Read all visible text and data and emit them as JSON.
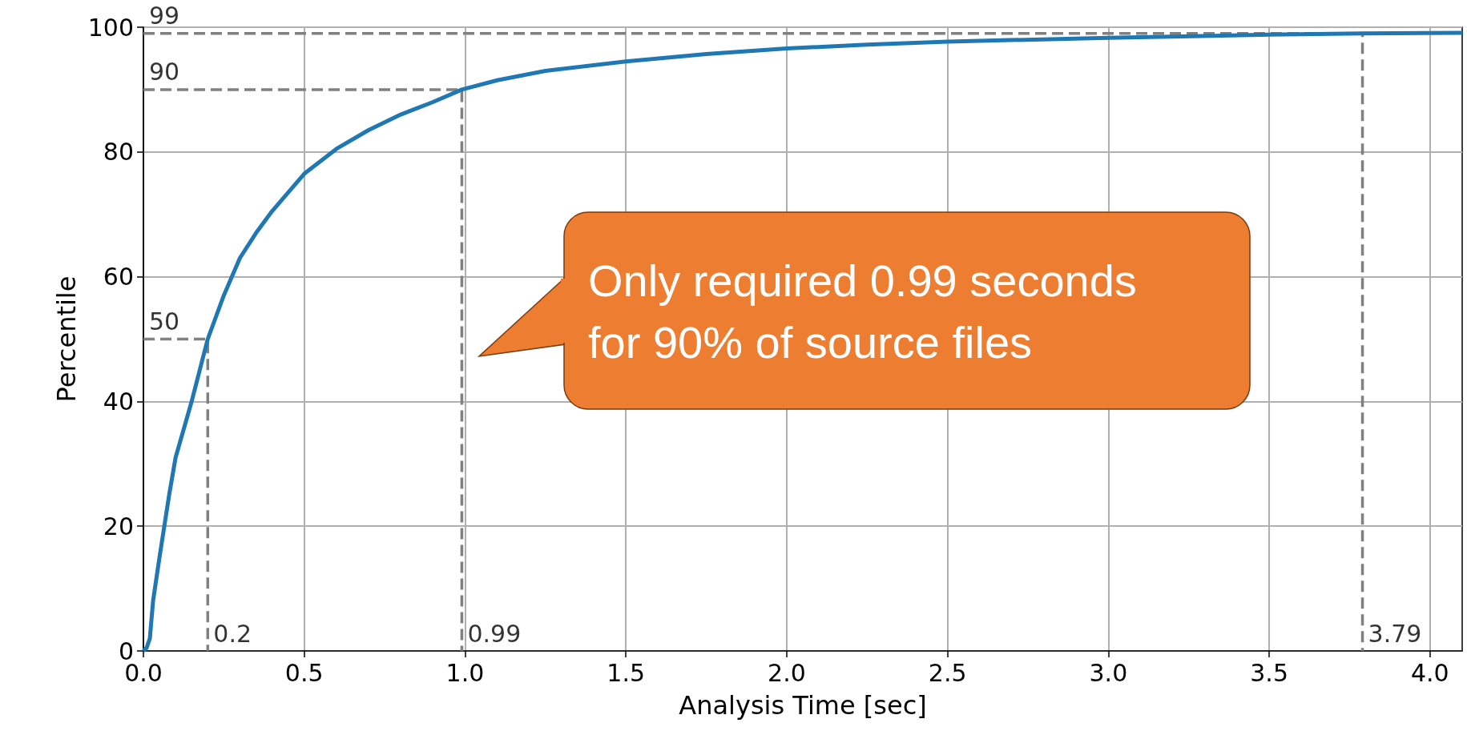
{
  "chart_data": {
    "type": "line",
    "xlabel": "Analysis Time [sec]",
    "ylabel": "Percentile",
    "xlim": [
      0,
      4.1
    ],
    "ylim": [
      0,
      100
    ],
    "xticks": [
      {
        "value": 0,
        "label": "0.0"
      },
      {
        "value": 0.5,
        "label": "0.5"
      },
      {
        "value": 1,
        "label": "1.0"
      },
      {
        "value": 1.5,
        "label": "1.5"
      },
      {
        "value": 2,
        "label": "2.0"
      },
      {
        "value": 2.5,
        "label": "2.5"
      },
      {
        "value": 3,
        "label": "3.0"
      },
      {
        "value": 3.5,
        "label": "3.5"
      },
      {
        "value": 4,
        "label": "4.0"
      }
    ],
    "yticks": [
      0,
      20,
      40,
      60,
      80,
      100
    ],
    "grid": true,
    "marker": "none",
    "series": [
      {
        "color": "#1f77b4",
        "line_style": "solid",
        "x": [
          0,
          0.01,
          0.02,
          0.03,
          0.05,
          0.08,
          0.1,
          0.15,
          0.2,
          0.25,
          0.3,
          0.35,
          0.4,
          0.5,
          0.6,
          0.7,
          0.8,
          0.9,
          0.99,
          1.1,
          1.25,
          1.5,
          1.75,
          2,
          2.25,
          2.5,
          3,
          3.5,
          3.79,
          4.1
        ],
        "values": [
          0,
          0.5,
          2,
          8,
          15,
          25,
          31,
          40,
          50,
          57,
          63,
          67,
          70.5,
          76.5,
          80.5,
          83.5,
          86,
          88,
          90,
          91.5,
          93,
          94.5,
          95.7,
          96.6,
          97.2,
          97.7,
          98.3,
          98.8,
          99,
          99.1
        ]
      },
      {
        "color": "#808080",
        "line_style": "dashed",
        "x": [
          0,
          0.2,
          0.2
        ],
        "values": [
          50,
          50,
          0
        ]
      },
      {
        "color": "#808080",
        "line_style": "dashed",
        "x": [
          0,
          0.99,
          0.99
        ],
        "values": [
          90,
          90,
          0
        ]
      },
      {
        "color": "#808080",
        "line_style": "dashed",
        "x": [
          0,
          3.79,
          3.79
        ],
        "values": [
          99,
          99,
          0
        ]
      }
    ],
    "annotations": [
      {
        "text": "50",
        "x": 0,
        "y": 50
      },
      {
        "text": "0.2",
        "x": 0.2,
        "y": 0
      },
      {
        "text": "90",
        "x": 0,
        "y": 90
      },
      {
        "text": "0.99",
        "x": 0.99,
        "y": 0
      },
      {
        "text": "99",
        "x": 0,
        "y": 99
      },
      {
        "text": "3.79",
        "x": 3.79,
        "y": 0
      },
      "Only required 0.99 seconds\nfor 90% of source files"
    ]
  }
}
